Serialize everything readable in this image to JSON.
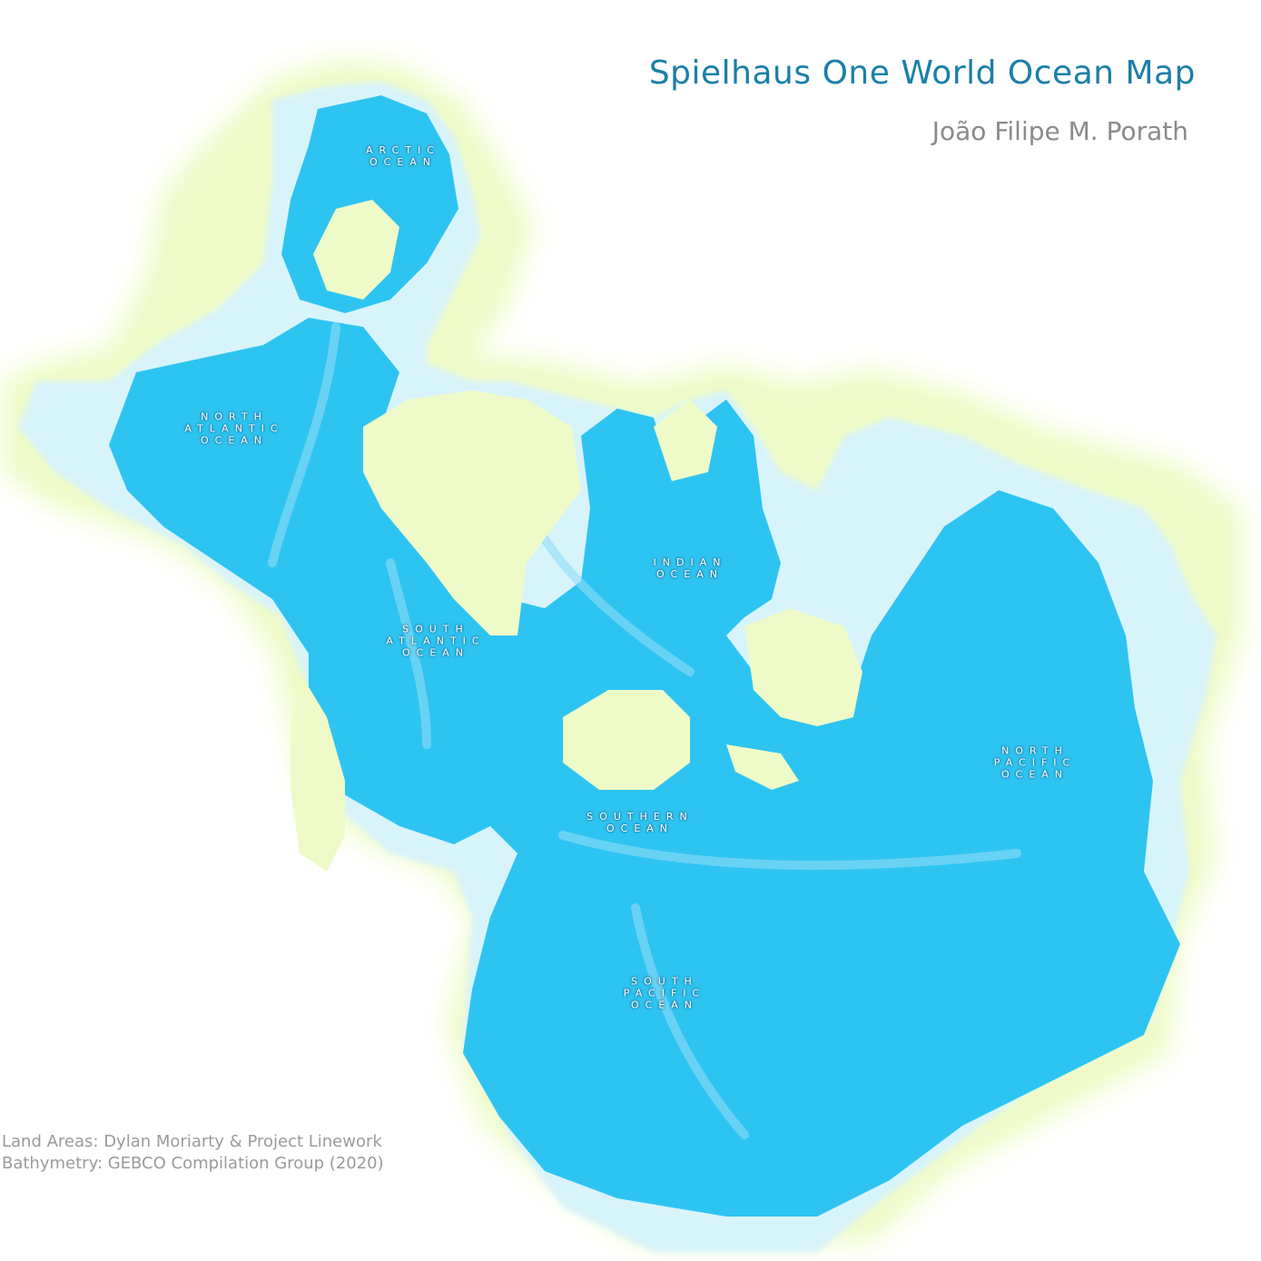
{
  "title": "Spielhaus One World Ocean Map",
  "author": "João Filipe M. Porath",
  "credits": {
    "land": "Land Areas: Dylan Moriarty & Project Linework",
    "bathymetry": "Bathymetry: GEBCO Compilation Group (2020)"
  },
  "oceans": {
    "arctic": "ARCTIC\nOCEAN",
    "north_atlantic": "NORTH\nATLANTIC\nOCEAN",
    "indian": "INDIAN\nOCEAN",
    "south_atlantic": "SOUTH\nATLANTIC\nOCEAN",
    "southern": "SOUTHERN\nOCEAN",
    "north_pacific": "NORTH\nPACIFIC\nOCEAN",
    "south_pacific": "SOUTH\nPACIFIC\nOCEAN"
  },
  "colors": {
    "ocean": "#2ec4f2",
    "ocean_light": "#8fdcf7",
    "shelf": "#d8f4fb",
    "land": "#eefbc8",
    "background": "#ffffff",
    "title": "#1a7fa8",
    "author": "#8a8a8a",
    "credits": "#9a9a9a"
  }
}
